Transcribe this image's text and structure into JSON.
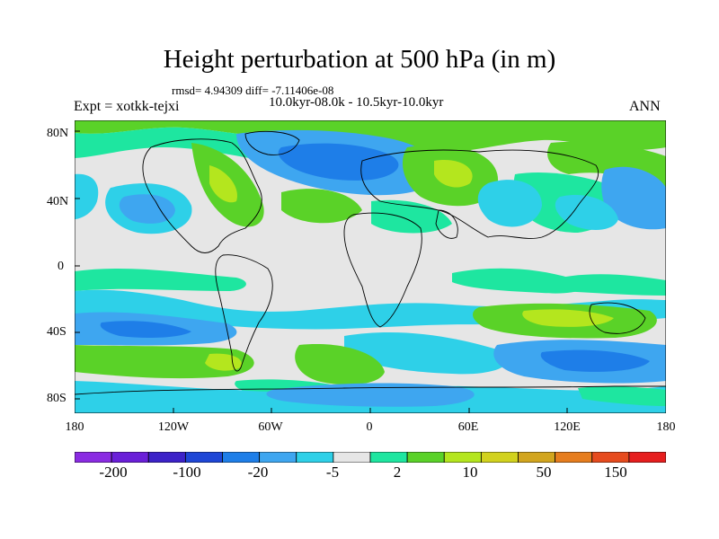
{
  "title": "Height perturbation at 500 hPa (in m)",
  "stats": "rmsd= 4.94309 diff= -7.11406e-08",
  "experiment": "Expt = xotkk-tejxi",
  "period": "10.0kyr-08.0k - 10.5kyr-10.0kyr",
  "season": "ANN",
  "lat_labels": [
    "80N",
    "40N",
    "0",
    "40S",
    "80S"
  ],
  "lon_labels": [
    "180",
    "120W",
    "60W",
    "0",
    "60E",
    "120E",
    "180"
  ],
  "colorbar": {
    "colors": [
      "#8a2be2",
      "#6a1fd8",
      "#3c22c8",
      "#1e46d6",
      "#1e7ee8",
      "#3ea6f0",
      "#2ed0e8",
      "#e6e6e6",
      "#1ee6a0",
      "#5ad228",
      "#b4e61e",
      "#d2d21e",
      "#d2a51e",
      "#e67d1e",
      "#e64b1e",
      "#e61e1e"
    ],
    "labels": [
      "-200",
      "-100",
      "-20",
      "-5",
      "2",
      "10",
      "50",
      "150"
    ]
  },
  "colors": {
    "background": "#e6e6e6",
    "neg_light": "#2ed0e8",
    "neg_mid": "#3ea6f0",
    "neg_strong": "#1e7ee8",
    "neg_deep": "#1e46d6",
    "pos_light": "#1ee6a0",
    "pos_mid": "#5ad228",
    "pos_strong": "#b4e61e"
  }
}
